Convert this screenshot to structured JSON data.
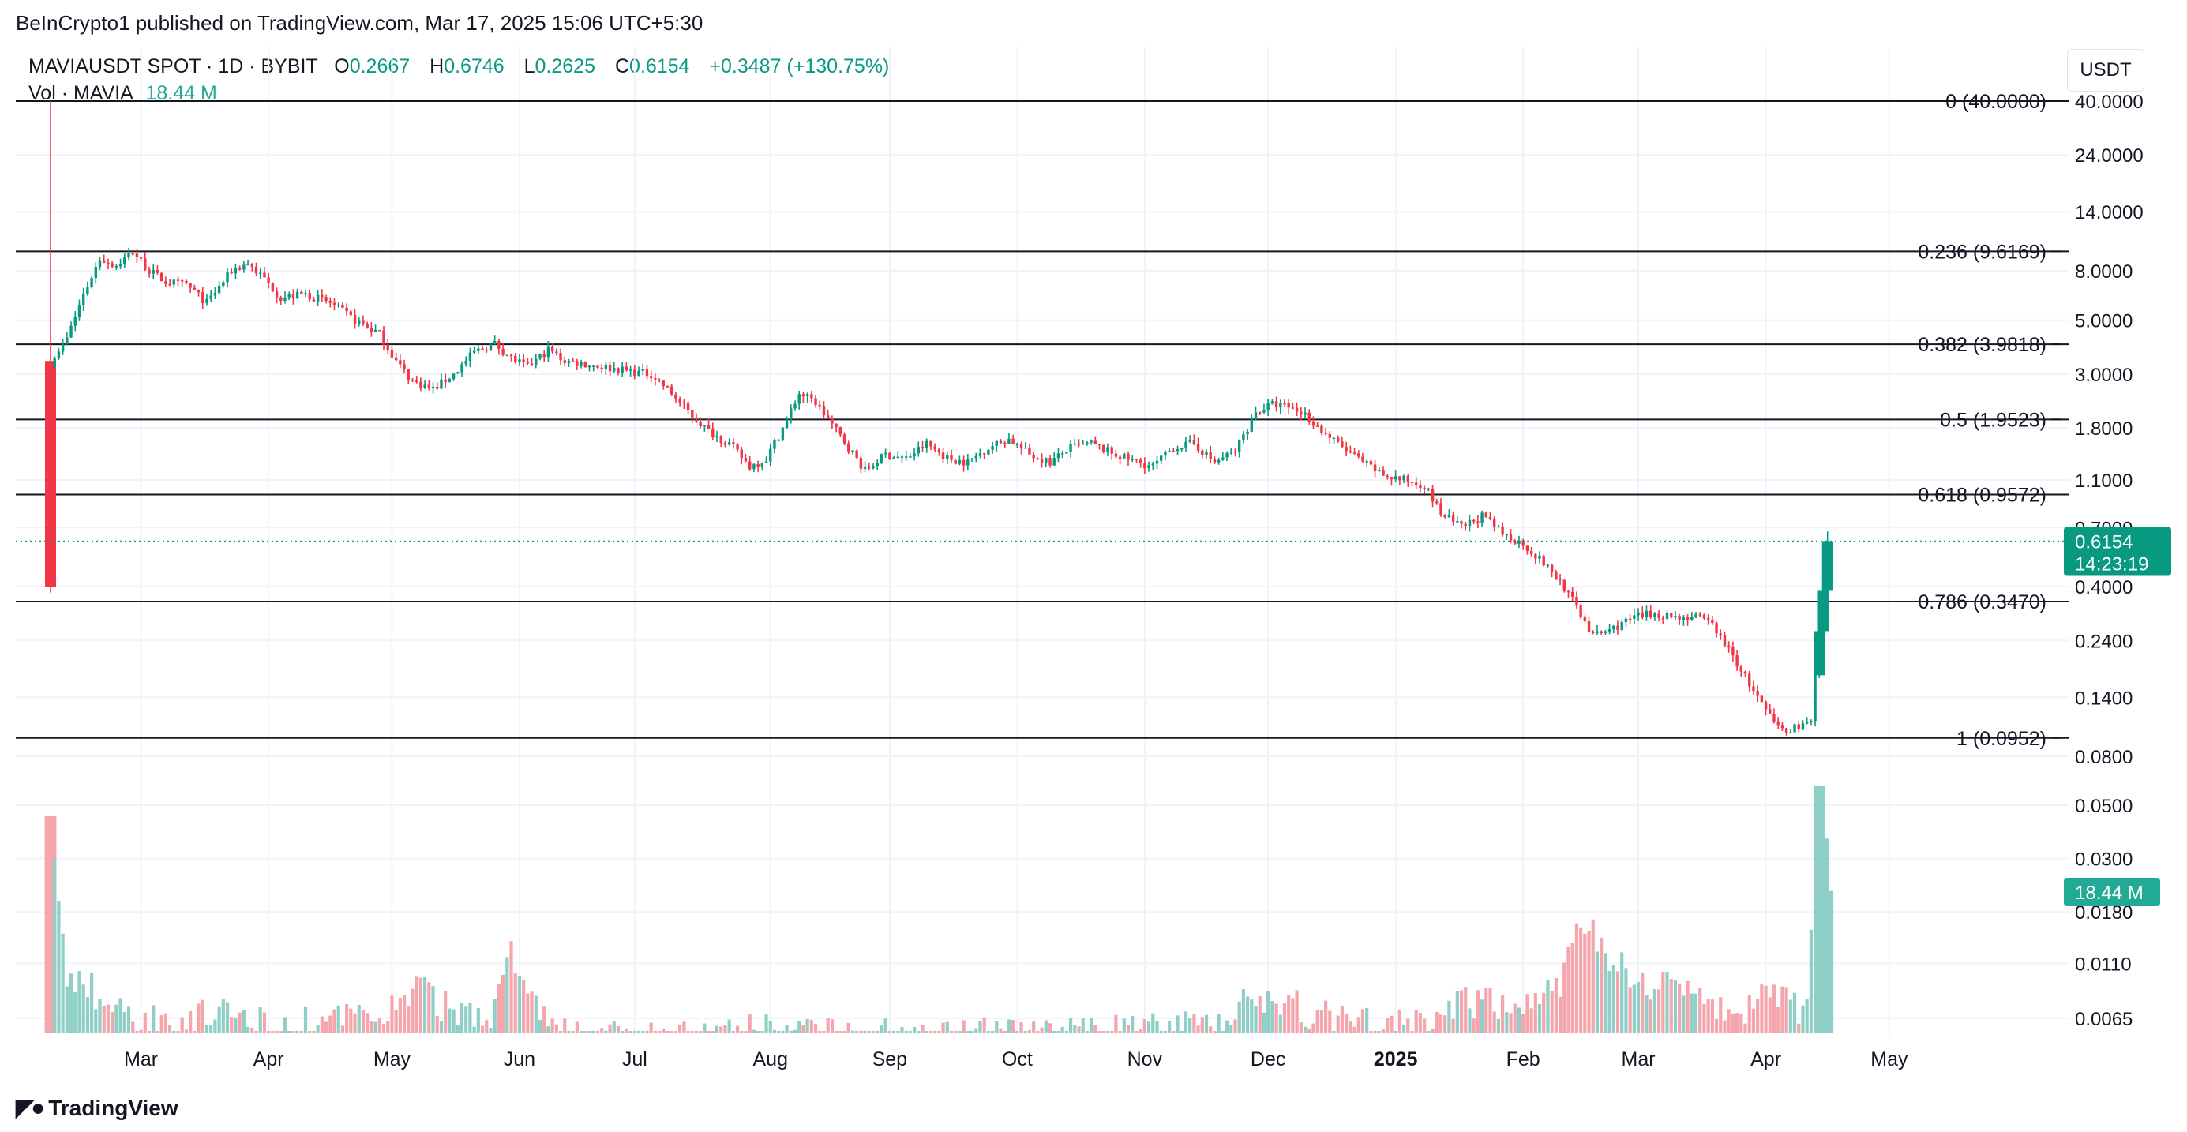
{
  "header": {
    "published": "BeInCrypto1 published on TradingView.com, Mar 17, 2025 15:06 UTC+5:30"
  },
  "legend": {
    "symbol": "MAVIAUSDT SPOT · 1D · BYBIT",
    "o_label": "O",
    "o_value": "0.2667",
    "h_label": "H",
    "h_value": "0.6746",
    "l_label": "L",
    "l_value": "0.2625",
    "c_label": "C",
    "c_value": "0.6154",
    "change": "+0.3487 (+130.75%)",
    "vol_label": "Vol · MAVIA",
    "vol_value": "18.44 M"
  },
  "currency": "USDT",
  "price_badge": {
    "price": "0.6154",
    "countdown": "14:23:19"
  },
  "volume_badge": "18.44 M",
  "footer": {
    "brand": "TradingView"
  },
  "colors": {
    "up": "#089981",
    "down": "#f23645",
    "volume_up": "#8fcfc8",
    "volume_down": "#f5a6ad",
    "grid": "#f0f3fa",
    "fib_line": "#131722"
  },
  "chart_data": {
    "type": "candlestick",
    "symbol": "MAVIAUSDT",
    "interval": "1D",
    "y_scale": "log",
    "ylim": [
      0.08,
      42.0
    ],
    "y_ticks": [
      "40.0000",
      "24.0000",
      "14.0000",
      "8.0000",
      "5.0000",
      "3.0000",
      "1.8000",
      "1.1000",
      "0.7000",
      "0.4000",
      "0.2400",
      "0.1400",
      "0.0800"
    ],
    "volume_ticks": [
      "0.0500",
      "0.0300",
      "0.0180",
      "0.0110",
      "0.0065"
    ],
    "x_ticks": [
      "Mar",
      "Apr",
      "May",
      "Jun",
      "Jul",
      "Aug",
      "Sep",
      "Oct",
      "Nov",
      "Dec",
      "2025",
      "Feb",
      "Mar",
      "Apr",
      "May"
    ],
    "fib_levels": [
      {
        "ratio": "0",
        "price": 40.0,
        "label": "0 (40.0000)"
      },
      {
        "ratio": "0.236",
        "price": 9.6169,
        "label": "0.236 (9.6169)"
      },
      {
        "ratio": "0.382",
        "price": 3.9818,
        "label": "0.382 (3.9818)"
      },
      {
        "ratio": "0.5",
        "price": 1.9523,
        "label": "0.5 (1.9523)"
      },
      {
        "ratio": "0.618",
        "price": 0.9572,
        "label": "0.618 (0.9572)"
      },
      {
        "ratio": "0.786",
        "price": 0.347,
        "label": "0.786 (0.3470)"
      },
      {
        "ratio": "1",
        "price": 0.0952,
        "label": "1 (0.0952)"
      }
    ],
    "last_price": 0.6154,
    "price_path": [
      [
        0,
        0.4
      ],
      [
        1,
        3.4
      ],
      [
        4,
        4.2
      ],
      [
        8,
        6.4
      ],
      [
        12,
        9.0
      ],
      [
        16,
        8.4
      ],
      [
        20,
        9.6
      ],
      [
        24,
        8.0
      ],
      [
        28,
        7.2
      ],
      [
        33,
        7.0
      ],
      [
        38,
        5.9
      ],
      [
        44,
        8.0
      ],
      [
        48,
        8.6
      ],
      [
        52,
        7.4
      ],
      [
        56,
        6.2
      ],
      [
        62,
        6.4
      ],
      [
        68,
        5.9
      ],
      [
        74,
        5.0
      ],
      [
        80,
        4.4
      ],
      [
        84,
        3.4
      ],
      [
        88,
        2.8
      ],
      [
        93,
        2.6
      ],
      [
        98,
        3.0
      ],
      [
        103,
        3.7
      ],
      [
        108,
        4.0
      ],
      [
        112,
        3.5
      ],
      [
        116,
        3.2
      ],
      [
        121,
        3.8
      ],
      [
        125,
        3.4
      ],
      [
        130,
        3.3
      ],
      [
        135,
        3.2
      ],
      [
        140,
        3.1
      ],
      [
        146,
        3.0
      ],
      [
        150,
        2.6
      ],
      [
        155,
        2.1
      ],
      [
        160,
        1.75
      ],
      [
        165,
        1.55
      ],
      [
        170,
        1.25
      ],
      [
        174,
        1.35
      ],
      [
        178,
        1.8
      ],
      [
        182,
        2.5
      ],
      [
        186,
        2.3
      ],
      [
        190,
        1.85
      ],
      [
        194,
        1.5
      ],
      [
        198,
        1.2
      ],
      [
        203,
        1.4
      ],
      [
        208,
        1.35
      ],
      [
        213,
        1.55
      ],
      [
        218,
        1.35
      ],
      [
        223,
        1.3
      ],
      [
        228,
        1.5
      ],
      [
        233,
        1.62
      ],
      [
        238,
        1.4
      ],
      [
        243,
        1.3
      ],
      [
        248,
        1.5
      ],
      [
        253,
        1.55
      ],
      [
        258,
        1.42
      ],
      [
        263,
        1.32
      ],
      [
        268,
        1.25
      ],
      [
        273,
        1.5
      ],
      [
        278,
        1.55
      ],
      [
        283,
        1.3
      ],
      [
        288,
        1.45
      ],
      [
        293,
        2.1
      ],
      [
        297,
        2.25
      ],
      [
        301,
        2.2
      ],
      [
        305,
        2.05
      ],
      [
        309,
        1.75
      ],
      [
        314,
        1.5
      ],
      [
        319,
        1.3
      ],
      [
        324,
        1.15
      ],
      [
        329,
        1.1
      ],
      [
        334,
        1.05
      ],
      [
        338,
        0.8
      ],
      [
        343,
        0.7
      ],
      [
        348,
        0.78
      ],
      [
        353,
        0.66
      ],
      [
        358,
        0.6
      ],
      [
        363,
        0.5
      ],
      [
        367,
        0.42
      ],
      [
        371,
        0.33
      ],
      [
        375,
        0.25
      ],
      [
        380,
        0.27
      ],
      [
        385,
        0.3
      ],
      [
        390,
        0.31
      ],
      [
        395,
        0.3
      ],
      [
        400,
        0.3
      ],
      [
        404,
        0.28
      ],
      [
        408,
        0.22
      ],
      [
        412,
        0.17
      ],
      [
        416,
        0.13
      ],
      [
        419,
        0.11
      ],
      [
        422,
        0.1
      ],
      [
        425,
        0.108
      ],
      [
        428,
        0.11
      ],
      [
        430,
        0.26
      ],
      [
        432,
        0.6154
      ]
    ],
    "volume_path": [
      [
        0,
        0.045
      ],
      [
        2,
        0.02
      ],
      [
        4,
        0.009
      ],
      [
        7,
        0.0095
      ],
      [
        10,
        0.0085
      ],
      [
        14,
        0.0072
      ],
      [
        20,
        0.0065
      ],
      [
        30,
        0.0062
      ],
      [
        40,
        0.0066
      ],
      [
        50,
        0.0062
      ],
      [
        60,
        0.006
      ],
      [
        70,
        0.0062
      ],
      [
        80,
        0.0066
      ],
      [
        90,
        0.0085
      ],
      [
        95,
        0.0072
      ],
      [
        100,
        0.0068
      ],
      [
        108,
        0.007
      ],
      [
        112,
        0.012
      ],
      [
        116,
        0.0075
      ],
      [
        120,
        0.0068
      ],
      [
        125,
        0.0055
      ],
      [
        140,
        0.0052
      ],
      [
        160,
        0.0053
      ],
      [
        175,
        0.0058
      ],
      [
        180,
        0.0055
      ],
      [
        200,
        0.0055
      ],
      [
        240,
        0.0055
      ],
      [
        270,
        0.0058
      ],
      [
        285,
        0.006
      ],
      [
        290,
        0.0082
      ],
      [
        294,
        0.0072
      ],
      [
        300,
        0.0078
      ],
      [
        305,
        0.007
      ],
      [
        315,
        0.0062
      ],
      [
        330,
        0.0058
      ],
      [
        337,
        0.0068
      ],
      [
        342,
        0.0075
      ],
      [
        350,
        0.0073
      ],
      [
        360,
        0.0078
      ],
      [
        368,
        0.0095
      ],
      [
        372,
        0.016
      ],
      [
        378,
        0.0125
      ],
      [
        382,
        0.0105
      ],
      [
        388,
        0.0092
      ],
      [
        395,
        0.0088
      ],
      [
        400,
        0.0075
      ],
      [
        410,
        0.0068
      ],
      [
        418,
        0.0078
      ],
      [
        424,
        0.0072
      ],
      [
        427,
        0.0065
      ],
      [
        430,
        0.06
      ],
      [
        432,
        0.022
      ]
    ]
  }
}
